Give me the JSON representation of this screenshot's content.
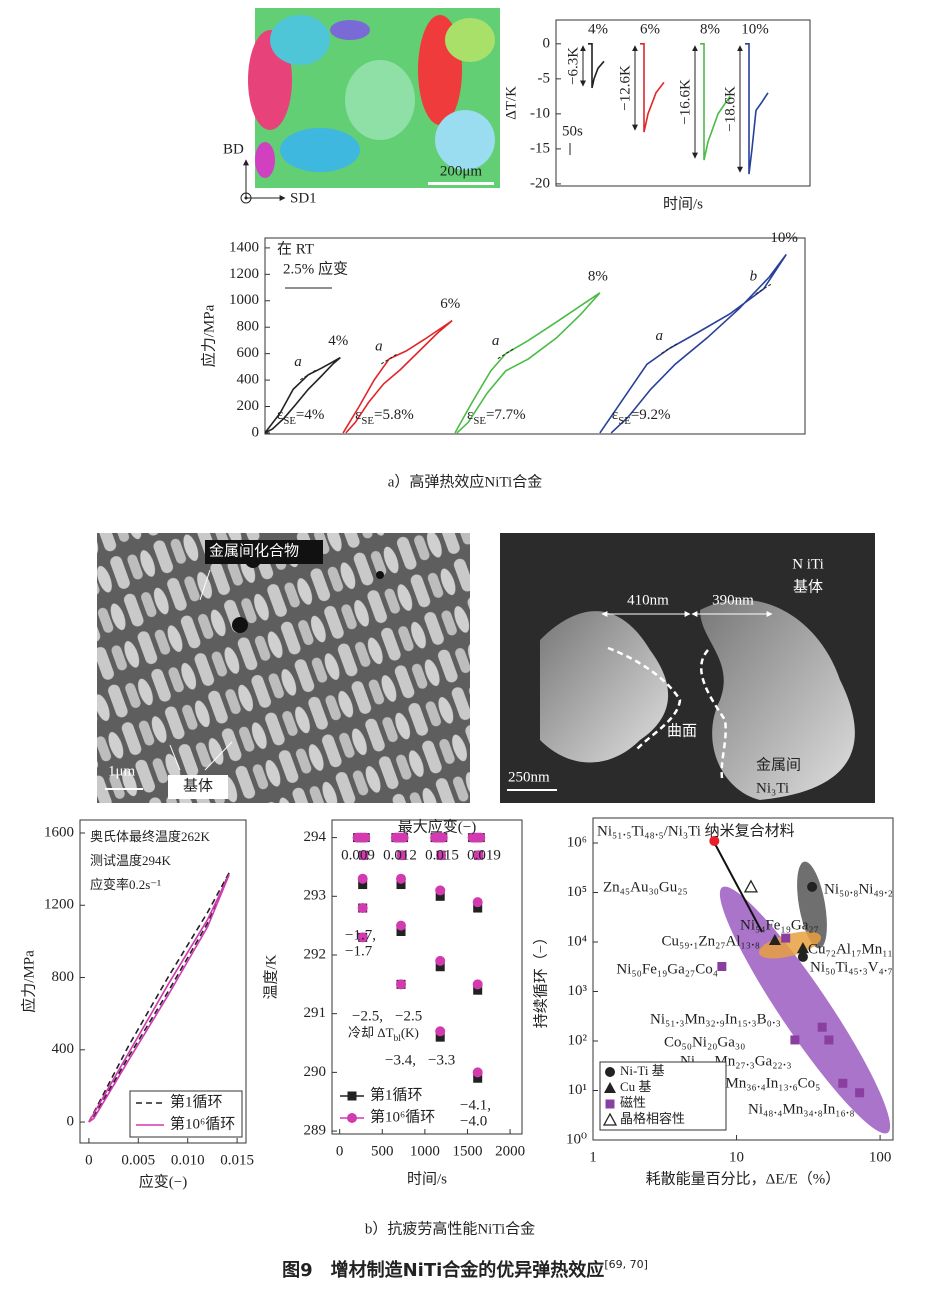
{
  "figure": {
    "panel_a": {
      "ebsd": {
        "axis_bd": "BD",
        "axis_sd": "SD1",
        "scale": "200μm"
      },
      "caption": "a）高弹热效应NiTi合金"
    },
    "panel_b": {
      "sem": {
        "label_intermetallic": "金属间化合物",
        "label_matrix": "基体",
        "scale": "1μm"
      },
      "tem": {
        "matrix": [
          "N iTi",
          "基体"
        ],
        "width_left": "410nm",
        "width_right": "390nm",
        "curve": "曲面",
        "scale": "250nm",
        "intermetallic": [
          "金属间",
          "Ni₃Ti"
        ]
      },
      "caption": "b）抗疲劳高性能NiTi合金"
    },
    "title": {
      "text": "图9　增材制造NiTi合金的优异弹热效应",
      "ref": "[69, 70]"
    }
  },
  "chart_data": [
    {
      "type": "line",
      "ylabel": "ΔT/K",
      "xlabel": "时间/s",
      "scale_bar": "50s",
      "xlim": [
        0,
        254
      ],
      "ylim": [
        -20.3,
        3.4
      ],
      "yticks": [
        -20,
        -15,
        -10,
        -5,
        0
      ],
      "series": [
        {
          "name": "4%",
          "color": "#222222",
          "drop_label": "−6.3K",
          "x": [
            32,
            36,
            36,
            38,
            42,
            48
          ],
          "values": [
            0,
            0,
            -6.3,
            -5,
            -3.5,
            -2.5
          ]
        },
        {
          "name": "6%",
          "color": "#e0262b",
          "drop_label": "−12.6K",
          "x": [
            84,
            88,
            88,
            92,
            100,
            108
          ],
          "values": [
            0,
            0,
            -12.6,
            -10,
            -7,
            -5.5
          ]
        },
        {
          "name": "8%",
          "color": "#4cbb45",
          "drop_label": "−16.6K",
          "x": [
            144,
            148,
            148,
            152,
            162,
            174
          ],
          "values": [
            0,
            0,
            -16.6,
            -14,
            -10,
            -7.5
          ]
        },
        {
          "name": "10%",
          "color": "#27409a",
          "drop_label": "−18.6K",
          "x": [
            189,
            193,
            193,
            196,
            200,
            205,
            212
          ],
          "values": [
            0,
            0,
            -18.6,
            -15,
            -9.5,
            -8.5,
            -7
          ]
        }
      ]
    },
    {
      "type": "line",
      "ylabel": "应力/MPa",
      "annotations": [
        "在 RT",
        "2.5% 应变"
      ],
      "xlim": [
        0,
        28.7
      ],
      "ylim": [
        -8,
        1475
      ],
      "yticks": [
        0,
        200,
        400,
        600,
        800,
        1000,
        1200,
        1400
      ],
      "series": [
        {
          "name": "4%",
          "color": "#222222",
          "se_label": [
            "ε",
            "SE",
            "=4%"
          ],
          "marks": [
            "a"
          ],
          "x": [
            0,
            0.8,
            1.5,
            2.3,
            3.0,
            3.5,
            4.0,
            3.6,
            3.0,
            2.3,
            1.6,
            1.0,
            0.4,
            0
          ],
          "values": [
            0,
            150,
            330,
            440,
            490,
            530,
            570,
            520,
            430,
            330,
            210,
            110,
            30,
            0
          ]
        },
        {
          "name": "6%",
          "color": "#e0262b",
          "se_label": [
            "ε",
            "SE",
            "=5.8%"
          ],
          "marks": [
            "a"
          ],
          "x": [
            4.15,
            5.0,
            5.8,
            6.6,
            7.5,
            8.5,
            9.95,
            9.2,
            8.2,
            7.2,
            6.3,
            5.5,
            4.8,
            4.3
          ],
          "values": [
            0,
            200,
            400,
            560,
            620,
            710,
            850,
            760,
            620,
            480,
            370,
            230,
            80,
            0
          ]
        },
        {
          "name": "8%",
          "color": "#4cbb45",
          "se_label": [
            "ε",
            "SE",
            "=7.7%"
          ],
          "marks": [
            "a"
          ],
          "x": [
            10.1,
            11,
            12,
            12.8,
            14,
            15.5,
            17.8,
            16.8,
            15.5,
            14,
            12.8,
            11.8,
            10.8,
            10.2
          ],
          "values": [
            0,
            230,
            470,
            600,
            700,
            840,
            1060,
            900,
            720,
            560,
            470,
            300,
            80,
            0
          ]
        },
        {
          "name": "10%",
          "color": "#27409a",
          "se_label": [
            "ε",
            "SE",
            "=9.2%"
          ],
          "marks": [
            "a",
            "b"
          ],
          "x": [
            17.8,
            19,
            20.3,
            21.5,
            23,
            24.7,
            26.5,
            27.7,
            26.8,
            25.2,
            23.5,
            21.8,
            20.5,
            19.3,
            18.4
          ],
          "values": [
            0,
            250,
            520,
            640,
            760,
            900,
            1090,
            1350,
            1180,
            940,
            720,
            520,
            330,
            120,
            0
          ]
        }
      ]
    },
    {
      "type": "line",
      "ylabel": "应力/MPa",
      "xlabel": "应变(−)",
      "annotations": [
        "奥氏体最终温度262K",
        "测试温度294K",
        "应变率0.2s⁻¹"
      ],
      "xlim": [
        -0.0009,
        0.0159
      ],
      "ylim": [
        -116,
        1672
      ],
      "xticks": [
        0,
        0.005,
        {
          "value": 0.01,
          "label": "0.010"
        },
        0.015
      ],
      "yticks": [
        0,
        400,
        800,
        1200,
        1600
      ],
      "series": [
        {
          "name": "第1循环",
          "color": "#222222",
          "dash": true,
          "x": [
            0,
            0.004,
            0.008,
            0.012,
            0.0142,
            0.012,
            0.008,
            0.004,
            0.0005,
            0
          ],
          "values": [
            0,
            420,
            800,
            1160,
            1380,
            1100,
            720,
            360,
            30,
            0
          ]
        },
        {
          "name": "第10⁶循环",
          "color": "#d23ab0",
          "x": [
            0,
            0.004,
            0.008,
            0.012,
            0.0142,
            0.012,
            0.008,
            0.004,
            0.0005,
            0
          ],
          "values": [
            0,
            380,
            760,
            1120,
            1370,
            1080,
            700,
            340,
            20,
            0
          ]
        }
      ]
    },
    {
      "type": "scatter",
      "ylabel": "温度/K",
      "xlabel": "时间/s",
      "strain_title": "最大应变(−)",
      "strain_labels": [
        "0.009",
        "0.012",
        "0.015",
        "0.019"
      ],
      "cooling_title": [
        "冷却 ΔT",
        "bl",
        "(K)"
      ],
      "cooling_labels": [
        [
          "−1.7,",
          "−1.7"
        ],
        [
          "−2.5,",
          "−2.5"
        ],
        [
          "−3.4,",
          "−3.3"
        ],
        [
          "−4.1,",
          "−4.0"
        ]
      ],
      "xlim": [
        -90,
        2140
      ],
      "ylim": [
        288.95,
        294.3
      ],
      "xticks": [
        0,
        500,
        1000,
        1500,
        2000
      ],
      "yticks": [
        289,
        290,
        291,
        292,
        293,
        294
      ],
      "series": [
        {
          "name": "第1循环",
          "color": "#222222",
          "marker": "square",
          "x": [
            210,
            240,
            270,
            270,
            270,
            270,
            280,
            300,
            660,
            690,
            720,
            720,
            720,
            720,
            730,
            750,
            1120,
            1150,
            1180,
            1180,
            1180,
            1180,
            1190,
            1210,
            1560,
            1590,
            1620,
            1620,
            1620,
            1620,
            1630,
            1650
          ],
          "values": [
            294,
            294,
            294,
            293.2,
            292.8,
            292.3,
            293.7,
            294,
            294,
            294,
            294,
            293.2,
            292.4,
            291.5,
            293.7,
            294,
            294,
            294,
            294,
            293,
            291.8,
            290.6,
            293.7,
            294,
            294,
            294,
            294,
            292.8,
            291.4,
            289.9,
            293.7,
            294
          ]
        },
        {
          "name": "第10⁶循环",
          "color": "#d23ab0",
          "marker": "circle",
          "x": [
            210,
            240,
            270,
            270,
            270,
            270,
            280,
            300,
            660,
            690,
            720,
            720,
            720,
            720,
            730,
            750,
            1120,
            1150,
            1180,
            1180,
            1180,
            1180,
            1190,
            1210,
            1560,
            1590,
            1620,
            1620,
            1620,
            1620,
            1630,
            1650
          ],
          "values": [
            294,
            294,
            294,
            293.3,
            292.8,
            292.3,
            293.7,
            294,
            294,
            294,
            294,
            293.3,
            292.5,
            291.5,
            293.7,
            294,
            294,
            294,
            294,
            293.1,
            291.9,
            290.7,
            293.7,
            294,
            294,
            294,
            294,
            292.9,
            291.5,
            290.0,
            293.7,
            294
          ]
        }
      ]
    },
    {
      "type": "scatter",
      "xlog": true,
      "ylog": true,
      "ylabel": "持续循环（−）",
      "xlabel": "耗散能量百分比，ΔE/E（%）",
      "xlim": [
        1,
        123
      ],
      "ylim": [
        1,
        3200000
      ],
      "xticks": [
        1,
        10,
        100
      ],
      "yticks": [
        {
          "value": 1,
          "label": "10⁰"
        },
        {
          "value": 10,
          "label": "10¹"
        },
        {
          "value": 100,
          "label": "10²"
        },
        {
          "value": 1000,
          "label": "10³"
        },
        {
          "value": 10000,
          "label": "10⁴"
        },
        {
          "value": 100000,
          "label": "10⁵"
        },
        {
          "value": 1000000,
          "label": "10⁶"
        }
      ],
      "series": [
        {
          "name": "Ni-Ti 基",
          "marker": "circle",
          "color": "#222222",
          "colors": [
            "#e8202a",
            "#222222",
            "#222222"
          ],
          "x": [
            7.0,
            33.6,
            29
          ],
          "values": [
            1100000,
            130000,
            5000
          ],
          "labels": [
            "Ni₅₁.₅Ti₄₈.₅/Ni₃Ti 纳米复合材料",
            "Ni₅₀.₈Ni₄₉.₂",
            "Ni₅₀Ti₄₅.₃V₄.₇"
          ]
        },
        {
          "name": "Cu 基",
          "marker": "triangle",
          "color": "#222222",
          "x": [
            18.5,
            29
          ],
          "values": [
            11000,
            7500
          ],
          "labels": [
            "Cu₅₉.₁Zn₂₇Al₁₃.₈",
            "Cu₇₂Al₁₇Mn₁₁"
          ]
        },
        {
          "name": "磁性",
          "marker": "square",
          "color": "#8a3fa0",
          "x": [
            22,
            7.9,
            39.5,
            25.5,
            44,
            55,
            72
          ],
          "values": [
            12000,
            3200,
            190,
            105,
            105,
            14,
            9
          ],
          "labels": [
            "Ni₅₄Fe₁₉Ga₂₇",
            "Ni₅₀Fe₁₉Ga₂₇Co₄",
            "Ni₅₁.₃Mn₃₂.₉In₁₅.₃B₀.₃",
            "Co₅₀Ni₂₀Ga₃₀",
            "Ni₅₀.₄Mn₂₇.₃Ga₂₂.₃",
            "Ni₄₅Mn₃₆.₄In₁₃.₆Co₅",
            "Ni₄₈.₄Mn₃₄.₈In₁₆.₈"
          ]
        },
        {
          "name": "晶格相容性",
          "marker": "open-triangle",
          "color": "#222222",
          "x": [
            12.6
          ],
          "values": [
            130000
          ],
          "labels": [
            "Zn₄₅Au₃₀Gu₂₅"
          ]
        }
      ]
    }
  ]
}
